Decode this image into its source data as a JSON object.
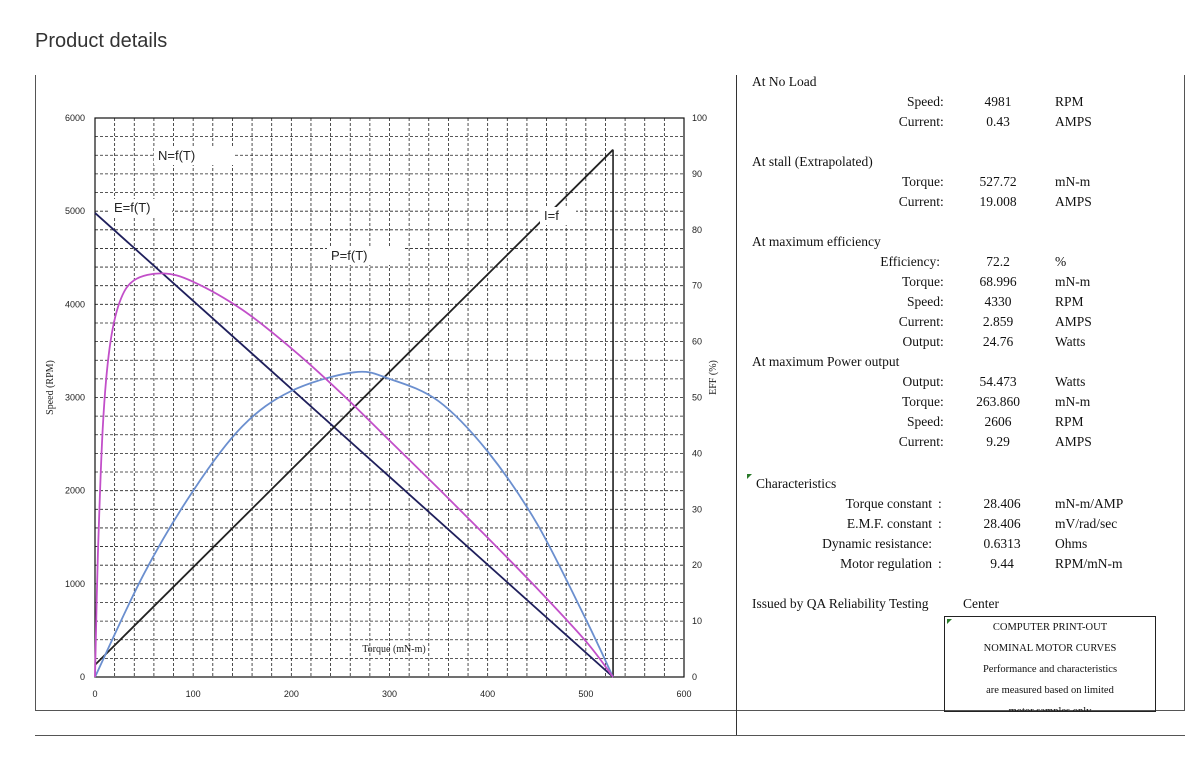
{
  "page": {
    "heading": "Product details"
  },
  "chart_data": {
    "type": "line",
    "xlabel": "Torque (mN-m)",
    "ylabel_left": "Speed (RPM)",
    "ylabel_right": "EFF (%)",
    "xlim": [
      0,
      600
    ],
    "ylim_left": [
      0,
      6000
    ],
    "ylim_right": [
      0,
      100
    ],
    "x_ticks": [
      0,
      100,
      200,
      300,
      400,
      500,
      600
    ],
    "y_ticks_left": [
      0,
      1000,
      2000,
      3000,
      4000,
      5000,
      6000
    ],
    "y_ticks_right": [
      0,
      10,
      20,
      30,
      40,
      50,
      60,
      70,
      80,
      90,
      100
    ],
    "grid": true,
    "curve_labels": [
      "N=f(T)",
      "E=f(T)",
      "P=f(T)",
      "I=f"
    ],
    "series": [
      {
        "name": "N=f(T)",
        "axis": "left",
        "color": "#1f1f5c",
        "points": [
          [
            0,
            4981
          ],
          [
            527.72,
            0
          ]
        ]
      },
      {
        "name": "I=f",
        "axis": "left",
        "color": "#222222",
        "points": [
          [
            0,
            130
          ],
          [
            527.72,
            5660
          ]
        ]
      },
      {
        "name": "P=f(T)",
        "axis": "left",
        "color": "#6b8fcf",
        "points": [
          [
            0,
            0
          ],
          [
            50,
            1110
          ],
          [
            100,
            2000
          ],
          [
            150,
            2690
          ],
          [
            200,
            3070
          ],
          [
            263.86,
            3270
          ],
          [
            300,
            3200
          ],
          [
            350,
            2960
          ],
          [
            400,
            2420
          ],
          [
            450,
            1650
          ],
          [
            500,
            620
          ],
          [
            527.72,
            0
          ]
        ]
      },
      {
        "name": "E=f(T)",
        "axis": "right",
        "color": "#c24fc9",
        "points": [
          [
            0,
            0
          ],
          [
            3,
            22
          ],
          [
            8,
            45
          ],
          [
            15,
            59
          ],
          [
            25,
            67
          ],
          [
            40,
            71
          ],
          [
            68.996,
            72.2
          ],
          [
            100,
            70.7
          ],
          [
            150,
            65.7
          ],
          [
            200,
            58.8
          ],
          [
            250,
            50.9
          ],
          [
            300,
            42.3
          ],
          [
            350,
            33.7
          ],
          [
            400,
            24.9
          ],
          [
            450,
            15.9
          ],
          [
            500,
            6.4
          ],
          [
            527.72,
            0
          ]
        ]
      }
    ]
  },
  "specs": {
    "no_load": {
      "title": "At No Load",
      "rows": [
        {
          "label": "Speed",
          "colon": ":",
          "value": "4981",
          "unit": "RPM"
        },
        {
          "label": "Current",
          "colon": ":",
          "value": "0.43",
          "unit": "AMPS"
        }
      ]
    },
    "stall": {
      "title": "At stall (Extrapolated)",
      "rows": [
        {
          "label": "Torque",
          "colon": ":",
          "value": "527.72",
          "unit": "mN-m"
        },
        {
          "label": "Current",
          "colon": ":",
          "value": "19.008",
          "unit": "AMPS"
        }
      ]
    },
    "max_eff": {
      "title": "At maximum efficiency",
      "rows": [
        {
          "label": "Efficiency:",
          "colon": "",
          "value": "72.2",
          "unit": "%"
        },
        {
          "label": "Torque",
          "colon": ":",
          "value": "68.996",
          "unit": "mN-m"
        },
        {
          "label": "Speed",
          "colon": ":",
          "value": "4330",
          "unit": "RPM"
        },
        {
          "label": "Current",
          "colon": ":",
          "value": "2.859",
          "unit": "AMPS"
        },
        {
          "label": "Output",
          "colon": ":",
          "value": "24.76",
          "unit": "Watts"
        }
      ]
    },
    "max_power": {
      "title": "At maximum Power output",
      "rows": [
        {
          "label": "Output",
          "colon": ":",
          "value": "54.473",
          "unit": "Watts"
        },
        {
          "label": "Torque",
          "colon": ":",
          "value": "263.860",
          "unit": "mN-m"
        },
        {
          "label": "Speed",
          "colon": ":",
          "value": "2606",
          "unit": "RPM"
        },
        {
          "label": "Current",
          "colon": ":",
          "value": "9.29",
          "unit": "AMPS"
        }
      ]
    },
    "characteristics": {
      "title": "Characteristics",
      "rows": [
        {
          "label": "Torque constant",
          "colon": ":",
          "value": "28.406",
          "unit": "mN-m/AMP"
        },
        {
          "label": "E.M.F. constant",
          "colon": ":",
          "value": "28.406",
          "unit": "mV/rad/sec"
        },
        {
          "label": "Dynamic resistance:",
          "colon": "",
          "value": "0.6313",
          "unit": "Ohms"
        },
        {
          "label": "Motor regulation",
          "colon": ":",
          "value": "9.44",
          "unit": "RPM/mN-m"
        }
      ]
    },
    "issued_by": "Issued by QA Reliability Testing",
    "issued_center": "Center"
  },
  "note": {
    "lines": [
      "COMPUTER PRINT-OUT",
      "NOMINAL MOTOR CURVES",
      "Performance and characteristics",
      "are measured based on limited",
      "motor samples only"
    ]
  },
  "colors": {
    "grid": "#222222",
    "comment_marker": "#2a7a2a"
  }
}
